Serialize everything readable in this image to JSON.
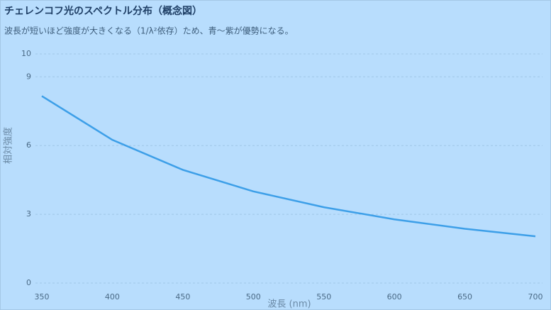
{
  "chart_data": {
    "type": "line",
    "title": "チェレンコフ光のスペクトル分布（概念図）",
    "subtitle": "波長が短いほど強度が大きくなる（1/λ²依存）ため、青〜紫が優勢になる。",
    "x_label": "波長 (nm)",
    "y_label": "相対強度",
    "x": [
      350,
      400,
      450,
      500,
      550,
      600,
      650,
      700
    ],
    "series": [
      {
        "name": "相対強度",
        "color": "#3d9fe8",
        "values": [
          8.16,
          6.25,
          4.94,
          4.0,
          3.31,
          2.78,
          2.37,
          2.04
        ]
      }
    ],
    "xlim": [
      350,
      700
    ],
    "xticks": [
      350,
      400,
      450,
      500,
      550,
      600,
      650,
      700
    ],
    "ylim": [
      0,
      10
    ],
    "yticks": [
      0,
      3,
      6,
      9,
      10
    ],
    "grid": true
  }
}
